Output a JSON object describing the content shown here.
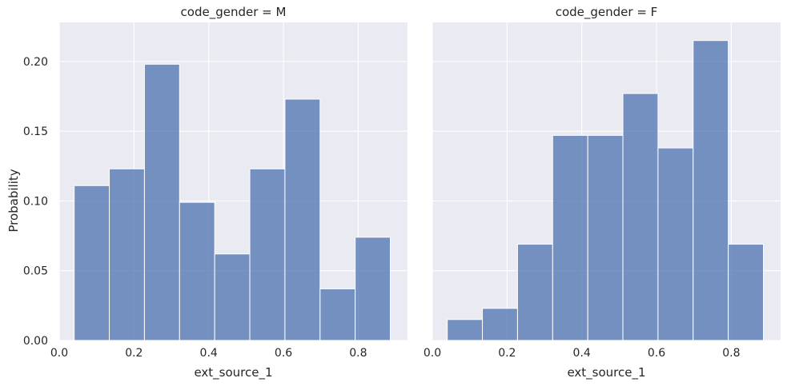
{
  "chart_data": {
    "type": "bar",
    "subtype": "histogram-facets",
    "ylabel": "Probability",
    "ylim": [
      0,
      0.228
    ],
    "yticks": [
      0.0,
      0.05,
      0.1,
      0.15,
      0.2
    ],
    "ytick_labels": [
      "0.00",
      "0.05",
      "0.10",
      "0.15",
      "0.20"
    ],
    "grid": true,
    "style": {
      "panel_bg": "#eaeaf2",
      "grid_color": "#ffffff",
      "bar_fill": "#4c72b0",
      "bar_opacity": 0.75,
      "bar_edge": "#ffffff"
    },
    "panels": [
      {
        "title": "code_gender = M",
        "xlabel": "ext_source_1",
        "xlim": [
          0.0,
          0.932
        ],
        "xticks": [
          0.0,
          0.2,
          0.4,
          0.6,
          0.8
        ],
        "xtick_labels": [
          "0.0",
          "0.2",
          "0.4",
          "0.6",
          "0.8"
        ],
        "bin_edges": [
          0.04,
          0.134,
          0.228,
          0.322,
          0.416,
          0.51,
          0.604,
          0.698,
          0.792,
          0.886
        ],
        "values": [
          0.111,
          0.123,
          0.198,
          0.099,
          0.062,
          0.123,
          0.173,
          0.037,
          0.074
        ]
      },
      {
        "title": "code_gender = F",
        "xlabel": "ext_source_1",
        "xlim": [
          0.0,
          0.932
        ],
        "xticks": [
          0.0,
          0.2,
          0.4,
          0.6,
          0.8
        ],
        "xtick_labels": [
          "0.0",
          "0.2",
          "0.4",
          "0.6",
          "0.8"
        ],
        "bin_edges": [
          0.04,
          0.134,
          0.228,
          0.322,
          0.416,
          0.51,
          0.604,
          0.698,
          0.792,
          0.886
        ],
        "values": [
          0.015,
          0.023,
          0.069,
          0.147,
          0.147,
          0.177,
          0.138,
          0.215,
          0.069
        ]
      }
    ]
  }
}
